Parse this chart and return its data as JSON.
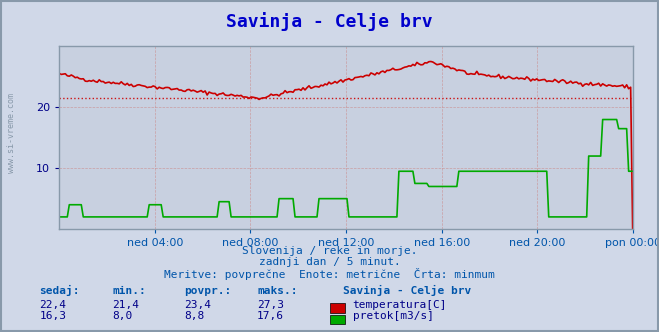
{
  "title": "Savinja - Celje brv",
  "title_color": "#0000cc",
  "bg_color": "#d0d8e8",
  "plot_bg_color": "#c8d0e0",
  "x_labels": [
    "ned 04:00",
    "ned 08:00",
    "ned 12:00",
    "ned 16:00",
    "ned 20:00",
    "pon 00:00"
  ],
  "x_ticks": [
    0.167,
    0.333,
    0.5,
    0.667,
    0.833,
    1.0
  ],
  "y_min": 0,
  "y_max": 30,
  "avg_line_y": 21.5,
  "temp_color": "#cc0000",
  "flow_color": "#00aa00",
  "watermark_text": "www.si-vreme.com",
  "watermark_color": "#8899aa",
  "subtitle1": "Slovenija / reke in morje.",
  "subtitle2": "zadnji dan / 5 minut.",
  "subtitle3": "Meritve: povprečne  Enote: metrične  Črta: minmum",
  "subtitle_color": "#0055aa",
  "label_header": "Savinja - Celje brv",
  "stat_headers": [
    "sedaj:",
    "min.:",
    "povpr.:",
    "maks.:"
  ],
  "stat_header_color": "#0055aa",
  "temp_stats": [
    "22,4",
    "21,4",
    "23,4",
    "27,3"
  ],
  "flow_stats": [
    "16,3",
    "8,0",
    "8,8",
    "17,6"
  ],
  "stat_color": "#000088",
  "legend_temp": "temperatura[C]",
  "legend_flow": "pretok[m3/s]",
  "border_color": "#8899aa",
  "grid_line_color": "#cc8888",
  "tick_color_y": "#000088",
  "tick_color_x": "#0055aa"
}
